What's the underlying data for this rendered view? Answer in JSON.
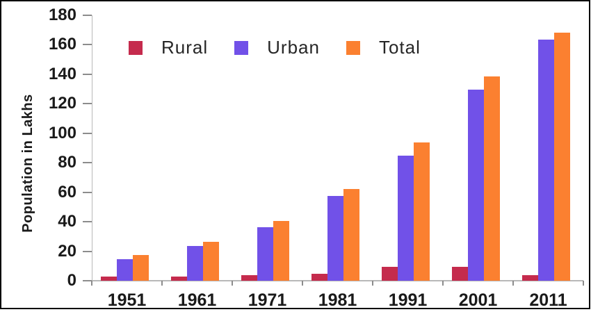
{
  "frame": {
    "background": "#ffffff",
    "border_color": "#000000"
  },
  "chart_data": {
    "type": "bar",
    "title": "",
    "xlabel": "",
    "ylabel": "Population in Lakhs",
    "categories": [
      "1951",
      "1961",
      "1971",
      "1981",
      "1991",
      "2001",
      "2011"
    ],
    "series": [
      {
        "name": "Rural",
        "color": "#C52B4D",
        "values": [
          3,
          3,
          4,
          4.5,
          9.5,
          9.5,
          4
        ]
      },
      {
        "name": "Urban",
        "color": "#7151E8",
        "values": [
          14.5,
          23.5,
          36.5,
          57.5,
          85,
          129.5,
          163.5
        ]
      },
      {
        "name": "Total",
        "color": "#FB8030",
        "values": [
          17.5,
          26.5,
          40.5,
          62,
          94,
          138.5,
          168
        ]
      }
    ],
    "ylim": [
      0,
      180
    ],
    "ytick_step": 20,
    "yticks": [
      0,
      20,
      40,
      60,
      80,
      100,
      120,
      140,
      160,
      180
    ],
    "grid": false,
    "legend_position": "top",
    "colors": {
      "axis_line": "#b8b8b8",
      "tick_mark": "#8c8c8c",
      "text": "#1a1a1a"
    }
  }
}
